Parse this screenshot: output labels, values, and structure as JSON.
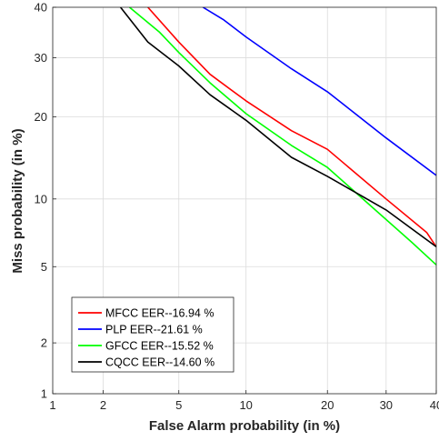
{
  "chart_data": {
    "type": "line",
    "title": "",
    "xlabel": "False Alarm probability (in %)",
    "ylabel": "Miss probability (in %)",
    "xscale": "probit",
    "yscale": "probit",
    "xlim": [
      1,
      40
    ],
    "ylim": [
      1,
      40
    ],
    "xticks": [
      1,
      2,
      5,
      10,
      20,
      30,
      40
    ],
    "yticks": [
      1,
      2,
      5,
      10,
      20,
      30,
      40
    ],
    "xtick_labels": [
      "1",
      "2",
      "5",
      "10",
      "20",
      "30",
      "40"
    ],
    "ytick_labels": [
      "1",
      "2",
      "5",
      "10",
      "20",
      "30",
      "40"
    ],
    "grid": true,
    "legend_position": "bottom-left",
    "series": [
      {
        "name": "MFCC EER--16.94 %",
        "color": "#ff0000",
        "points": [
          [
            3.5,
            40
          ],
          [
            5,
            33
          ],
          [
            7,
            27
          ],
          [
            10,
            22.5
          ],
          [
            15,
            18
          ],
          [
            20,
            15.5
          ],
          [
            30,
            10
          ],
          [
            38,
            7.2
          ],
          [
            40,
            6.2
          ]
        ]
      },
      {
        "name": "PLP EER--21.61 %",
        "color": "#0000ff",
        "points": [
          [
            6.5,
            40
          ],
          [
            8,
            37.5
          ],
          [
            10,
            34
          ],
          [
            15,
            28
          ],
          [
            20,
            24
          ],
          [
            30,
            17
          ],
          [
            40,
            12.4
          ]
        ]
      },
      {
        "name": "GFCC EER--15.52 %",
        "color": "#00ff00",
        "points": [
          [
            2.8,
            40
          ],
          [
            4,
            35
          ],
          [
            5,
            31
          ],
          [
            7,
            25.5
          ],
          [
            10,
            20.5
          ],
          [
            15,
            16
          ],
          [
            20,
            13.3
          ],
          [
            28,
            9
          ],
          [
            35,
            6.5
          ],
          [
            40,
            5.1
          ]
        ]
      },
      {
        "name": "CQCC EER--14.60 %",
        "color": "#000000",
        "points": [
          [
            2.5,
            40
          ],
          [
            3.5,
            33
          ],
          [
            5,
            28.5
          ],
          [
            7,
            23.5
          ],
          [
            10,
            19.5
          ],
          [
            15,
            14.5
          ],
          [
            20,
            12.3
          ],
          [
            30,
            9
          ],
          [
            40,
            6.2
          ]
        ]
      }
    ]
  }
}
